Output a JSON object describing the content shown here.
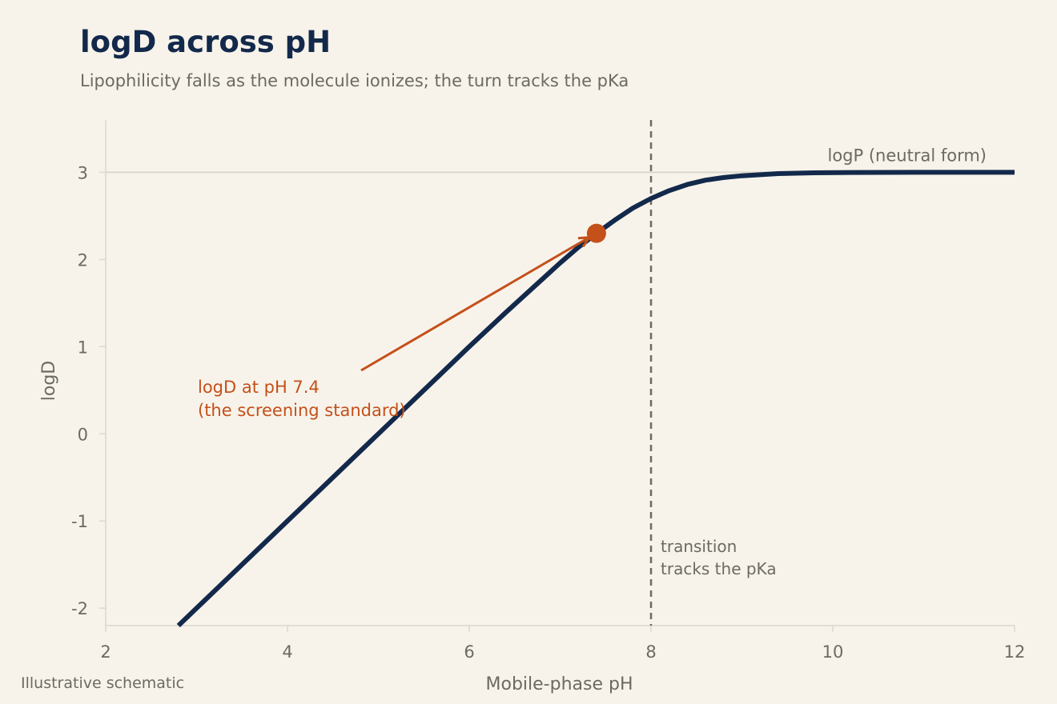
{
  "chart_data": {
    "type": "line",
    "title": "logD across pH",
    "subtitle": "Lipophilicity falls as the molecule ionizes; the turn tracks the pKa",
    "xlabel": "Mobile-phase pH",
    "ylabel": "logD",
    "xlim": [
      2,
      12
    ],
    "ylim": [
      -2.2,
      3.6
    ],
    "xticks": [
      "2",
      "4",
      "6",
      "8",
      "10",
      "12"
    ],
    "yticks": [
      "-2",
      "-1",
      "0",
      "1",
      "2",
      "3"
    ],
    "series": [
      {
        "x": [
          2.8,
          3.2,
          3.6,
          4.0,
          4.4,
          4.8,
          5.2,
          5.6,
          6.0,
          6.4,
          6.8,
          7.0,
          7.2,
          7.4,
          7.6,
          7.8,
          8.0,
          8.2,
          8.4,
          8.6,
          8.8,
          9.0,
          9.4,
          9.8,
          10.2,
          10.6,
          11.0,
          11.5,
          12.0
        ],
        "y": [
          -2.2,
          -1.8,
          -1.4,
          -1.0,
          -0.6,
          -0.2,
          0.2,
          0.6,
          1.0,
          1.39,
          1.77,
          1.96,
          2.14,
          2.3,
          2.45,
          2.59,
          2.7,
          2.79,
          2.86,
          2.91,
          2.94,
          2.96,
          2.985,
          2.994,
          2.998,
          2.999,
          3.0,
          3.0,
          3.0
        ]
      }
    ],
    "reference_lines": {
      "horizontal": {
        "y": 3,
        "label": "logP (neutral form)"
      },
      "vertical": {
        "x": 8,
        "label_lines": [
          "transition",
          "tracks the pKa"
        ]
      }
    },
    "highlight_point": {
      "x": 7.4,
      "y": 2.3
    },
    "annotation": {
      "lines": [
        "logD at pH 7.4",
        "(the screening standard)"
      ]
    },
    "footnote": "Illustrative schematic",
    "colors": {
      "line": "#13294b",
      "highlight": "#c4501a",
      "axis": "#dcd8cc",
      "reference": "#6b6a63",
      "background": "#f7f3ea"
    },
    "grid": false
  }
}
